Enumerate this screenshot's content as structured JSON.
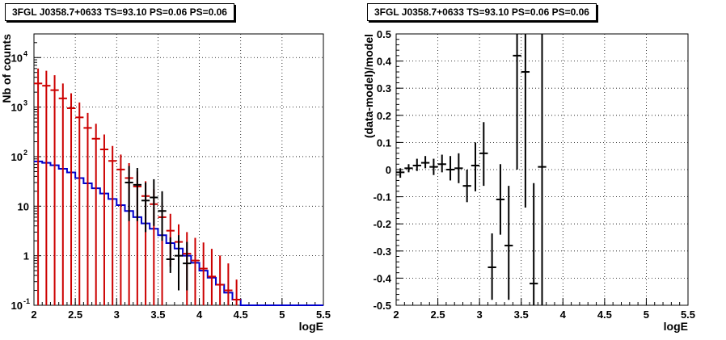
{
  "chart_data": [
    {
      "type": "line",
      "title": "3FGL J0358.7+0633 TS=93.10 PS=0.06 PS=0.06",
      "xlabel": "logE",
      "ylabel": "Nb of counts",
      "xlim": [
        2,
        5.5
      ],
      "ylim": [
        0.1,
        30000
      ],
      "yscale": "log",
      "grid": true,
      "x_ticks": [
        "2",
        "2.5",
        "3",
        "3.5",
        "4",
        "4.5",
        "5",
        "5.5"
      ],
      "y_ticks": [
        {
          "value": 0.1,
          "label": "10",
          "exp": "-1"
        },
        {
          "value": 1,
          "label": "1",
          "exp": ""
        },
        {
          "value": 10,
          "label": "10",
          "exp": ""
        },
        {
          "value": 100,
          "label": "10",
          "exp": "2"
        },
        {
          "value": 1000,
          "label": "10",
          "exp": "3"
        },
        {
          "value": 10000,
          "label": "10",
          "exp": "4"
        }
      ],
      "series": [
        {
          "kind": "step",
          "color": "#0000cc",
          "bin_edges": [
            2.0,
            2.1,
            2.2,
            2.3,
            2.4,
            2.5,
            2.6,
            2.7,
            2.8,
            2.9,
            3.0,
            3.1,
            3.2,
            3.3,
            3.4,
            3.5,
            3.6,
            3.7,
            3.8,
            3.9,
            4.0,
            4.1,
            4.2,
            4.3,
            4.4,
            4.5,
            5.5
          ],
          "values": [
            80,
            75,
            67,
            57,
            48,
            37,
            29,
            23,
            18,
            14,
            10.5,
            8,
            6,
            4.5,
            3.5,
            2.6,
            1.8,
            1.4,
            1.0,
            0.72,
            0.5,
            0.36,
            0.26,
            0.18,
            0.13,
            0.1
          ]
        },
        {
          "kind": "points",
          "color": "#cc0000",
          "x": [
            2.05,
            2.15,
            2.25,
            2.35,
            2.45,
            2.55,
            2.65,
            2.75,
            2.85,
            2.95,
            3.05,
            3.15,
            3.25,
            3.35,
            3.45,
            3.55,
            3.65,
            3.75,
            3.85,
            3.95,
            4.05,
            4.15,
            4.25,
            4.35,
            4.45
          ],
          "values": [
            3000,
            2700,
            2200,
            1500,
            950,
            620,
            380,
            230,
            140,
            82,
            55,
            37,
            25,
            16,
            11,
            6,
            3.2,
            1.9,
            1.1,
            0.8,
            0.55,
            0.38,
            0.26,
            0.2,
            0.13
          ],
          "err_lo": [
            3000,
            2700,
            2200,
            1500,
            950,
            620,
            380,
            230,
            140,
            82,
            55,
            37,
            25,
            16,
            11,
            6,
            2.6,
            1.65,
            1.0,
            0.72,
            0.48,
            0.33,
            0.23,
            0.17,
            0.1
          ],
          "err_hi": [
            3000,
            2700,
            2200,
            1500,
            950,
            620,
            380,
            230,
            140,
            82,
            55,
            37,
            25,
            16,
            11,
            6,
            3.8,
            2.4,
            1.9,
            1.5,
            1.3,
            1.0,
            0.75,
            0.5,
            0.2
          ],
          "xerr": 0.05
        },
        {
          "kind": "points",
          "color": "#000000",
          "x": [
            3.15,
            3.25,
            3.35,
            3.45,
            3.55,
            3.65,
            3.75,
            3.85
          ],
          "values": [
            30,
            27,
            13,
            15,
            8,
            0.85,
            1.0,
            0.7
          ],
          "err_lo": [
            25,
            22,
            10,
            11,
            6,
            0.4,
            0.8,
            0.5
          ],
          "err_hi": [
            35,
            32,
            17,
            20,
            12,
            1.5,
            1.6,
            1.2
          ],
          "xerr": 0.05
        }
      ]
    },
    {
      "type": "scatter",
      "title": "3FGL J0358.7+0633 TS=93.10 PS=0.06 PS=0.06",
      "xlabel": "logE",
      "ylabel": "(data-model)/model",
      "xlim": [
        2,
        5.5
      ],
      "ylim": [
        -0.5,
        0.5
      ],
      "grid": true,
      "x_ticks": [
        "2",
        "2.5",
        "3",
        "3.5",
        "4",
        "4.5",
        "5",
        "5.5"
      ],
      "y_ticks": [
        "-0.5",
        "-0.4",
        "-0.3",
        "-0.2",
        "-0.1",
        "0",
        "0.1",
        "0.2",
        "0.3",
        "0.4",
        "0.5"
      ],
      "series": [
        {
          "color": "#000000",
          "x": [
            2.05,
            2.15,
            2.25,
            2.35,
            2.45,
            2.55,
            2.65,
            2.75,
            2.85,
            2.95,
            3.05,
            3.15,
            3.25,
            3.35,
            3.45,
            3.55,
            3.65,
            3.75
          ],
          "y": [
            -0.01,
            0.005,
            0.015,
            0.025,
            0.01,
            0.02,
            0.0,
            0.005,
            -0.06,
            0.015,
            0.06,
            -0.36,
            -0.11,
            -0.28,
            0.42,
            0.36,
            -0.42,
            0.01
          ],
          "y_lo": [
            -0.03,
            -0.01,
            -0.005,
            0.005,
            -0.02,
            -0.01,
            -0.04,
            -0.05,
            -0.12,
            -0.08,
            -0.06,
            -0.48,
            -0.24,
            -0.48,
            0.0,
            -0.14,
            -0.5,
            -0.5
          ],
          "y_hi": [
            0.005,
            0.02,
            0.04,
            0.05,
            0.04,
            0.055,
            0.05,
            0.06,
            0.0,
            0.1,
            0.175,
            -0.235,
            0.02,
            -0.06,
            0.5,
            0.5,
            -0.05,
            0.5
          ],
          "xerr": 0.05
        }
      ]
    }
  ]
}
